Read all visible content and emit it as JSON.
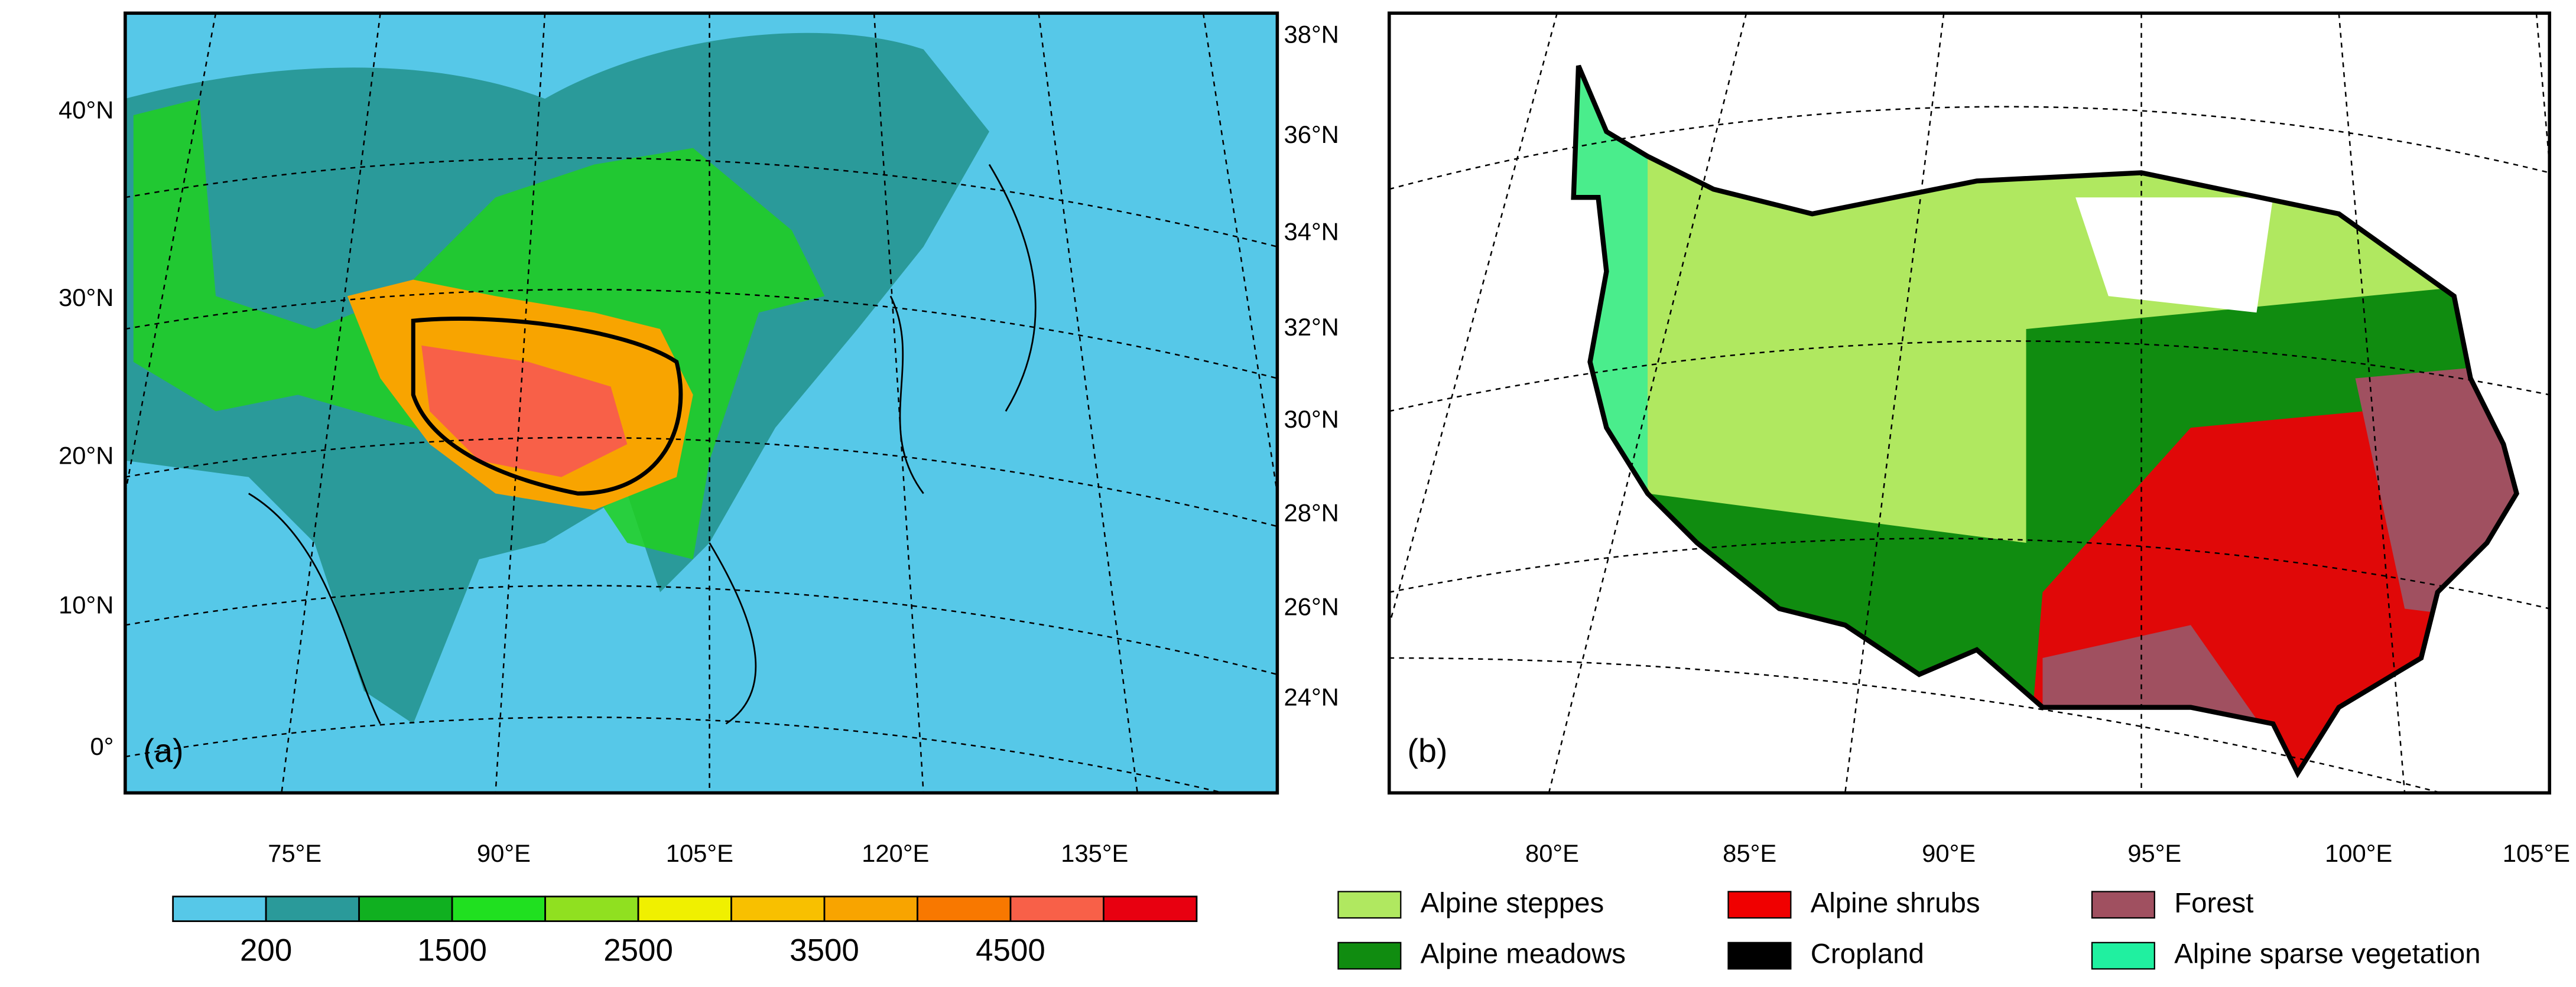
{
  "panel_a": {
    "label": "(a)",
    "lat_labels": [
      "40°N",
      "30°N",
      "20°N",
      "10°N",
      "0°"
    ],
    "lon_labels": [
      "75°E",
      "90°E",
      "105°E",
      "120°E",
      "135°E"
    ],
    "colorbar": {
      "colors": [
        "#56c8e8",
        "#2a9a9a",
        "#10b020",
        "#20e020",
        "#90e020",
        "#f0f000",
        "#f8c000",
        "#f8a400",
        "#f87800",
        "#f86048",
        "#e80010"
      ],
      "labels": [
        "200",
        "1500",
        "2500",
        "3500",
        "4500"
      ]
    }
  },
  "panel_b": {
    "label": "(b)",
    "lat_labels": [
      "38°N",
      "36°N",
      "34°N",
      "32°N",
      "30°N",
      "28°N",
      "26°N",
      "24°N"
    ],
    "lon_labels": [
      "80°E",
      "85°E",
      "90°E",
      "95°E",
      "100°E",
      "105°E"
    ],
    "legend": [
      {
        "name": "Alpine steppes",
        "color": "#b0e860"
      },
      {
        "name": "Alpine meadows",
        "color": "#108c10"
      },
      {
        "name": "Alpine shrubs",
        "color": "#f00000"
      },
      {
        "name": "Cropland",
        "color": "#000000"
      },
      {
        "name": "Forest",
        "color": "#a05060"
      },
      {
        "name": "Alpine sparse vegetation",
        "color": "#20f0a0"
      }
    ]
  }
}
